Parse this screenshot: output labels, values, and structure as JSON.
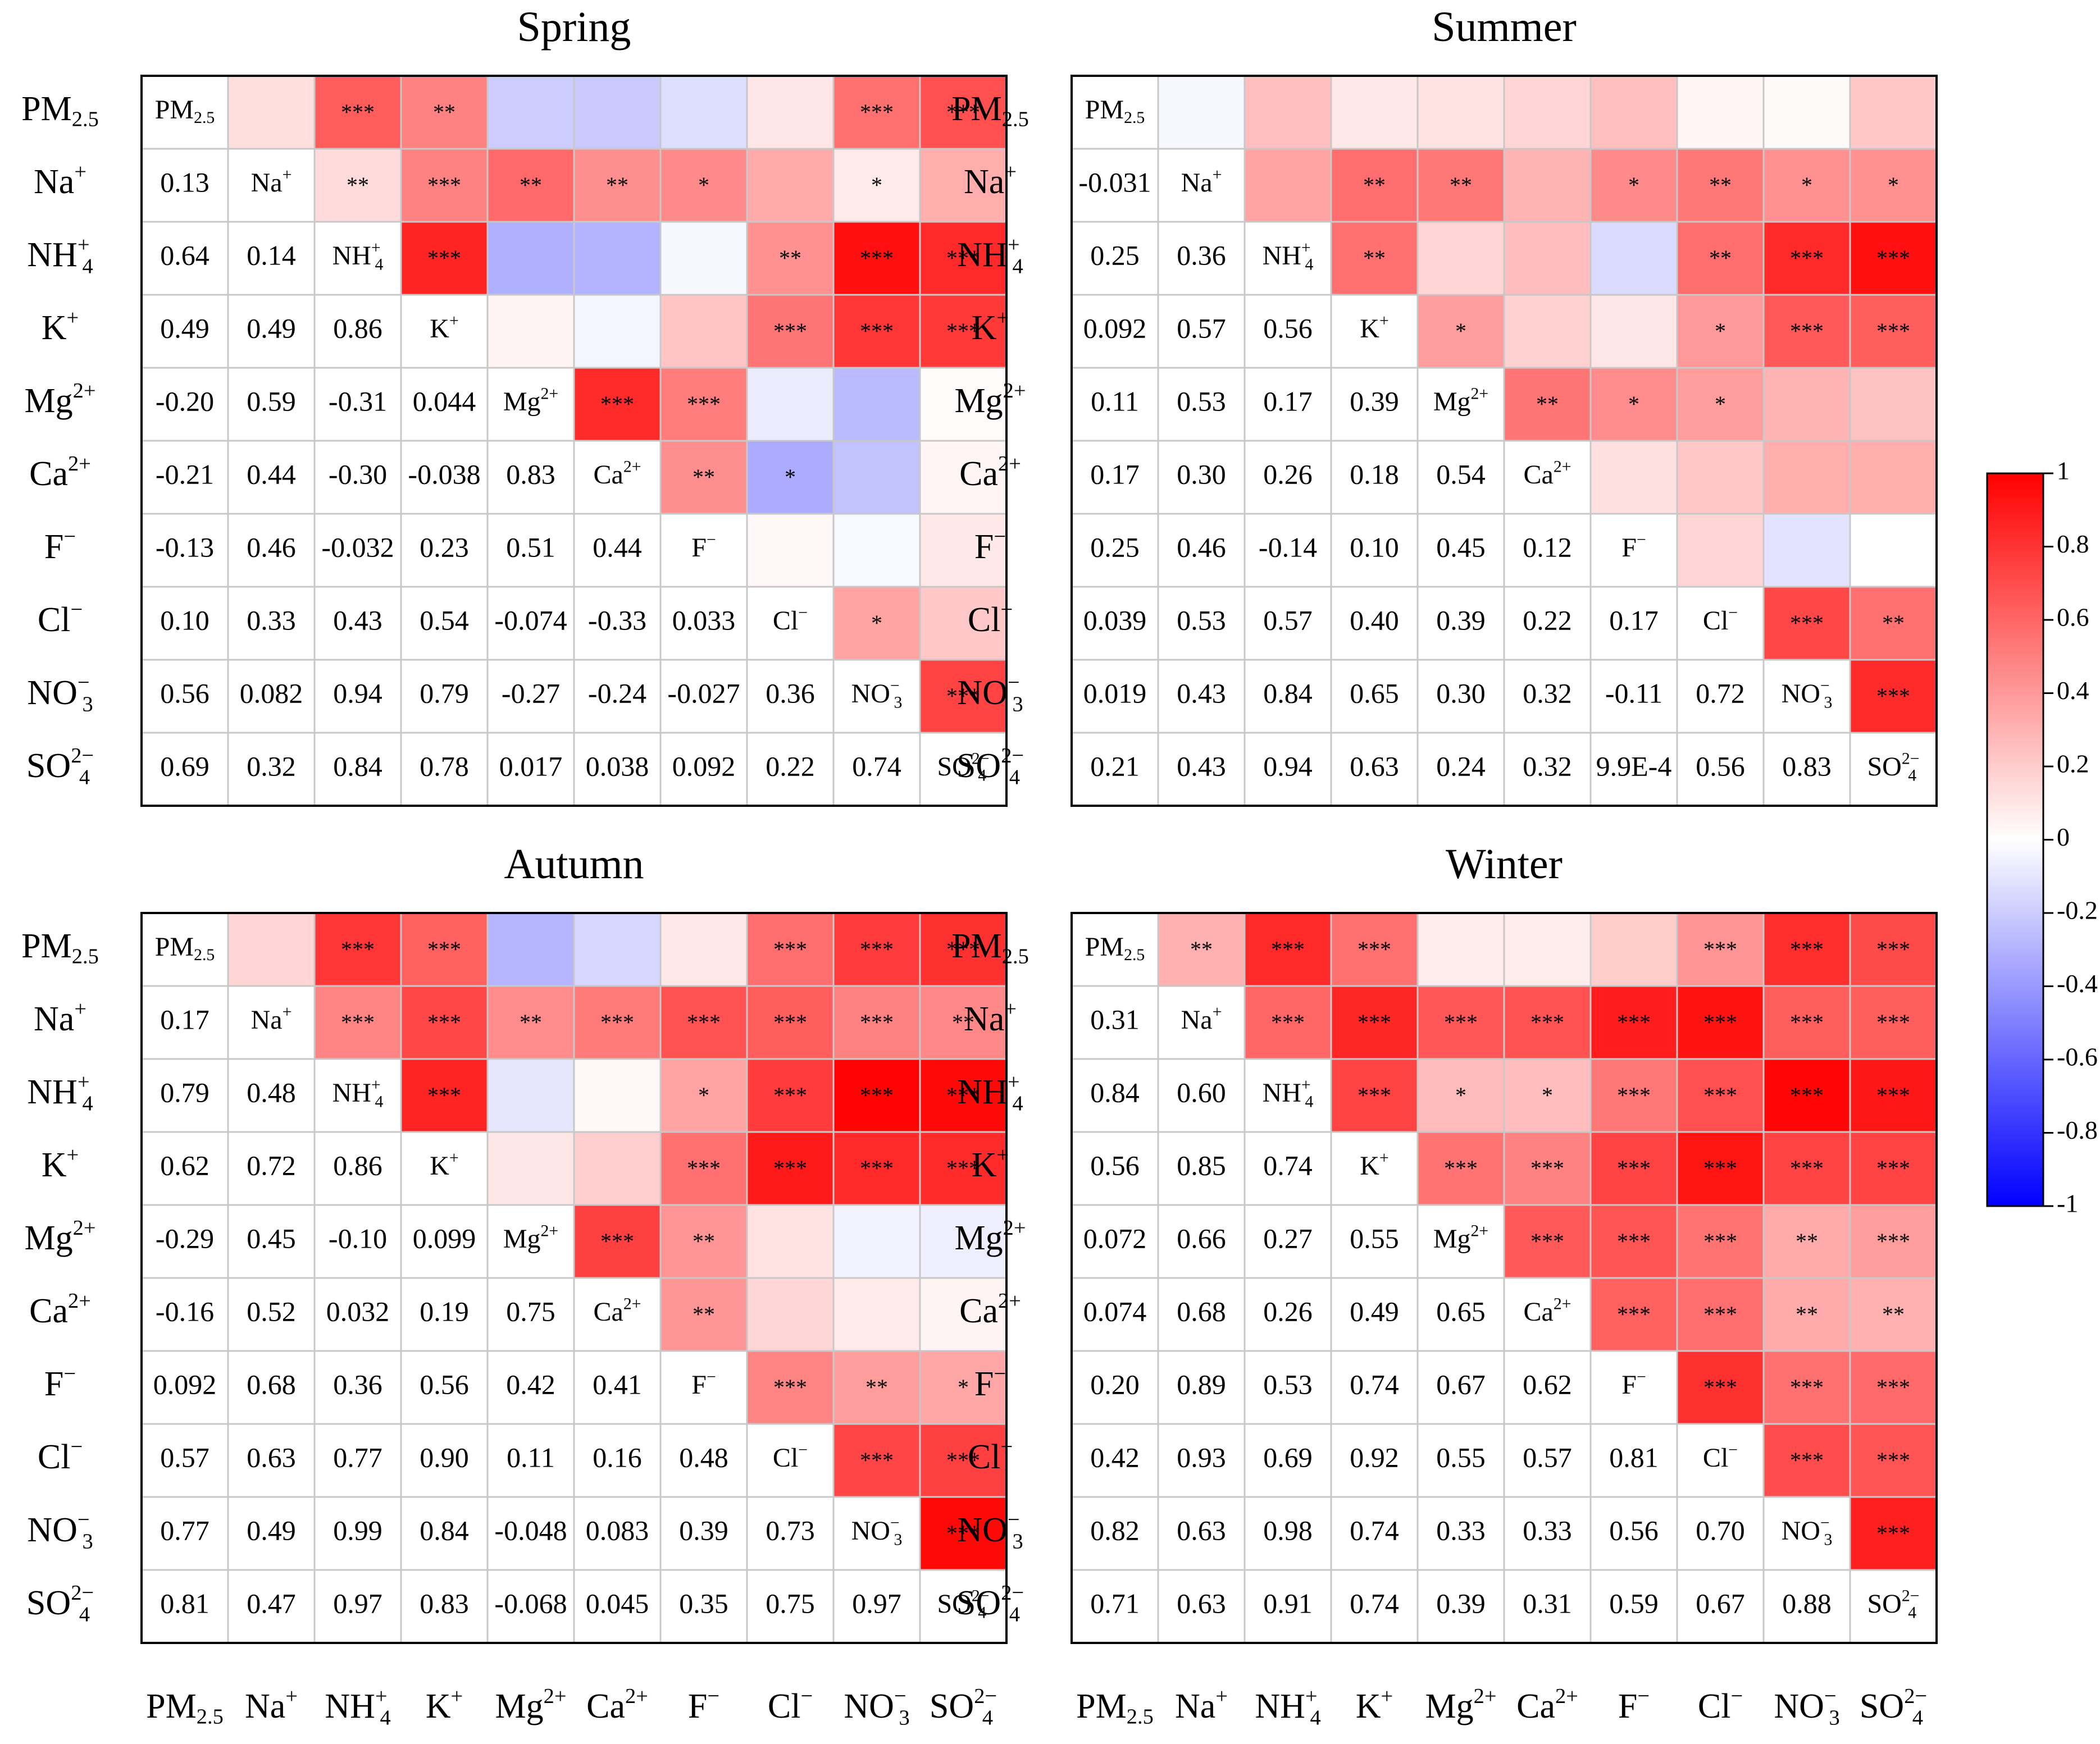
{
  "chart_data": {
    "type": "heatmap",
    "variables": [
      {
        "id": "pm25",
        "base": "PM",
        "sub": "2.5",
        "sup": ""
      },
      {
        "id": "na",
        "base": "Na",
        "sub": "",
        "sup": "+"
      },
      {
        "id": "nh4",
        "base": "NH",
        "sub": "4",
        "sup": "+"
      },
      {
        "id": "k",
        "base": "K",
        "sub": "",
        "sup": "+"
      },
      {
        "id": "mg",
        "base": "Mg",
        "sub": "",
        "sup": "2+"
      },
      {
        "id": "ca",
        "base": "Ca",
        "sub": "",
        "sup": "2+"
      },
      {
        "id": "f",
        "base": "F",
        "sub": "",
        "sup": "−"
      },
      {
        "id": "cl",
        "base": "Cl",
        "sub": "",
        "sup": "−"
      },
      {
        "id": "no3",
        "base": "NO",
        "sub": "3",
        "sup": "−"
      },
      {
        "id": "so4",
        "base": "SO",
        "sub": "4",
        "sup": "2−"
      }
    ],
    "colorbar": {
      "min": -1,
      "max": 1,
      "colors": {
        "low": "#0000ff",
        "mid": "#ffffff",
        "high": "#ff0000"
      },
      "ticks": [
        "1",
        "0.8",
        "0.6",
        "0.4",
        "0.2",
        "0",
        "-0.2",
        "-0.4",
        "-0.6",
        "-0.8",
        "-1"
      ]
    },
    "panels": [
      {
        "title": "Spring",
        "lower": [
          [
            "0.13"
          ],
          [
            "0.64",
            "0.14"
          ],
          [
            "0.49",
            "0.49",
            "0.86"
          ],
          [
            "-0.20",
            "0.59",
            "-0.31",
            "0.044"
          ],
          [
            "-0.21",
            "0.44",
            "-0.30",
            "-0.038",
            "0.83"
          ],
          [
            "-0.13",
            "0.46",
            "-0.032",
            "0.23",
            "0.51",
            "0.44"
          ],
          [
            "0.10",
            "0.33",
            "0.43",
            "0.54",
            "-0.074",
            "-0.33",
            "0.033"
          ],
          [
            "0.56",
            "0.082",
            "0.94",
            "0.79",
            "-0.27",
            "-0.24",
            "-0.027",
            "0.36"
          ],
          [
            "0.69",
            "0.32",
            "0.84",
            "0.78",
            "0.017",
            "0.038",
            "0.092",
            "0.22",
            "0.74"
          ]
        ],
        "stars": [
          [
            "",
            "***",
            "**",
            "",
            "",
            "",
            "",
            "***",
            "***"
          ],
          [
            "**",
            "***",
            "**",
            "**",
            "*",
            "",
            "*"
          ],
          [
            "***",
            "",
            "",
            "",
            "**",
            "***",
            "***"
          ],
          [
            "",
            "",
            "",
            "***",
            "***",
            "***"
          ],
          [
            "***",
            "***",
            "",
            "",
            ""
          ],
          [
            "**",
            "*",
            "",
            ""
          ],
          [
            "",
            "",
            ""
          ],
          [
            "*",
            ""
          ],
          [
            "***"
          ]
        ]
      },
      {
        "title": "Summer",
        "lower": [
          [
            "-0.031"
          ],
          [
            "0.25",
            "0.36"
          ],
          [
            "0.092",
            "0.57",
            "0.56"
          ],
          [
            "0.11",
            "0.53",
            "0.17",
            "0.39"
          ],
          [
            "0.17",
            "0.30",
            "0.26",
            "0.18",
            "0.54"
          ],
          [
            "0.25",
            "0.46",
            "-0.14",
            "0.10",
            "0.45",
            "0.12"
          ],
          [
            "0.039",
            "0.53",
            "0.57",
            "0.40",
            "0.39",
            "0.22",
            "0.17"
          ],
          [
            "0.019",
            "0.43",
            "0.84",
            "0.65",
            "0.30",
            "0.32",
            "-0.11",
            "0.72"
          ],
          [
            "0.21",
            "0.43",
            "0.94",
            "0.63",
            "0.24",
            "0.32",
            "9.9E-4",
            "0.56",
            "0.83"
          ]
        ],
        "stars": [
          [
            "",
            "",
            "",
            "",
            "",
            "",
            "",
            "",
            ""
          ],
          [
            "",
            "**",
            "**",
            "",
            "*",
            "**",
            "*",
            "*"
          ],
          [
            "**",
            "",
            "",
            "",
            "**",
            "***",
            "***"
          ],
          [
            "*",
            "",
            "",
            "*",
            "***",
            "***"
          ],
          [
            "**",
            "*",
            "*",
            "",
            ""
          ],
          [
            "",
            "",
            "",
            ""
          ],
          [
            "",
            "",
            ""
          ],
          [
            "***",
            "**"
          ],
          [
            "***"
          ]
        ]
      },
      {
        "title": "Autumn",
        "lower": [
          [
            "0.17"
          ],
          [
            "0.79",
            "0.48"
          ],
          [
            "0.62",
            "0.72",
            "0.86"
          ],
          [
            "-0.29",
            "0.45",
            "-0.10",
            "0.099"
          ],
          [
            "-0.16",
            "0.52",
            "0.032",
            "0.19",
            "0.75"
          ],
          [
            "0.092",
            "0.68",
            "0.36",
            "0.56",
            "0.42",
            "0.41"
          ],
          [
            "0.57",
            "0.63",
            "0.77",
            "0.90",
            "0.11",
            "0.16",
            "0.48"
          ],
          [
            "0.77",
            "0.49",
            "0.99",
            "0.84",
            "-0.048",
            "0.083",
            "0.39",
            "0.73"
          ],
          [
            "0.81",
            "0.47",
            "0.97",
            "0.83",
            "-0.068",
            "0.045",
            "0.35",
            "0.75",
            "0.97"
          ]
        ],
        "stars": [
          [
            "",
            "***",
            "***",
            "",
            "",
            "",
            "***",
            "***",
            "***"
          ],
          [
            "***",
            "***",
            "**",
            "***",
            "***",
            "***",
            "***",
            "**"
          ],
          [
            "***",
            "",
            "",
            "*",
            "***",
            "***",
            "***"
          ],
          [
            "",
            "",
            "***",
            "***",
            "***",
            "***"
          ],
          [
            "***",
            "**",
            "",
            "",
            ""
          ],
          [
            "**",
            "",
            "",
            ""
          ],
          [
            "***",
            "**",
            "*"
          ],
          [
            "***",
            "***"
          ],
          [
            "***"
          ]
        ]
      },
      {
        "title": "Winter",
        "lower": [
          [
            "0.31"
          ],
          [
            "0.84",
            "0.60"
          ],
          [
            "0.56",
            "0.85",
            "0.74"
          ],
          [
            "0.072",
            "0.66",
            "0.27",
            "0.55"
          ],
          [
            "0.074",
            "0.68",
            "0.26",
            "0.49",
            "0.65"
          ],
          [
            "0.20",
            "0.89",
            "0.53",
            "0.74",
            "0.67",
            "0.62"
          ],
          [
            "0.42",
            "0.93",
            "0.69",
            "0.92",
            "0.55",
            "0.57",
            "0.81"
          ],
          [
            "0.82",
            "0.63",
            "0.98",
            "0.74",
            "0.33",
            "0.33",
            "0.56",
            "0.70"
          ],
          [
            "0.71",
            "0.63",
            "0.91",
            "0.74",
            "0.39",
            "0.31",
            "0.59",
            "0.67",
            "0.88"
          ]
        ],
        "stars": [
          [
            "**",
            "***",
            "***",
            "",
            "",
            "",
            "***",
            "***",
            "***"
          ],
          [
            "***",
            "***",
            "***",
            "***",
            "***",
            "***",
            "***",
            "***"
          ],
          [
            "***",
            "*",
            "*",
            "***",
            "***",
            "***",
            "***"
          ],
          [
            "***",
            "***",
            "***",
            "***",
            "***",
            "***"
          ],
          [
            "***",
            "***",
            "***",
            "**",
            "***"
          ],
          [
            "***",
            "***",
            "**",
            "**"
          ],
          [
            "***",
            "***",
            "***"
          ],
          [
            "***",
            "***"
          ],
          [
            "***"
          ]
        ]
      }
    ]
  }
}
